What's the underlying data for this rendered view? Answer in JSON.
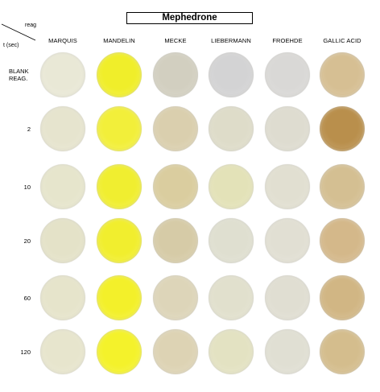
{
  "title": "Mephedrone",
  "corner": {
    "reagent_label": "reag",
    "time_label": "t (sec)"
  },
  "reagents": [
    "MARQUIS",
    "MANDELIN",
    "MECKE",
    "LIEBERMANN",
    "FROEHDE",
    "GALLIC ACID"
  ],
  "rows": [
    {
      "label_line1": "BLANK",
      "label_line2": "REAG."
    },
    {
      "label_line1": "2",
      "label_line2": ""
    },
    {
      "label_line1": "10",
      "label_line2": ""
    },
    {
      "label_line1": "20",
      "label_line2": ""
    },
    {
      "label_line1": "60",
      "label_line2": ""
    },
    {
      "label_line1": "120",
      "label_line2": ""
    }
  ],
  "well_colors": [
    [
      "#e9e8d6",
      "#f0ee2a",
      "#d2cfc0",
      "#d3d3d4",
      "#d9d8d6",
      "#d6bf93"
    ],
    [
      "#e6e4ce",
      "#f2ef3a",
      "#dacfae",
      "#dedcc9",
      "#dedcd0",
      "#b98f4c"
    ],
    [
      "#e6e5cc",
      "#f0ee30",
      "#dacd9f",
      "#e3e2b8",
      "#e1dfd1",
      "#d4bf92"
    ],
    [
      "#e4e2c8",
      "#f1ee2e",
      "#d6cba7",
      "#dfdfd0",
      "#e1dfd3",
      "#d4b88a"
    ],
    [
      "#e6e4cb",
      "#f3f02a",
      "#ddd5b9",
      "#e1e0cd",
      "#e0ded2",
      "#d1b684"
    ],
    [
      "#e7e5cd",
      "#f4f22b",
      "#ddd3b4",
      "#e3e2c2",
      "#e0dfd3",
      "#d4bd8d"
    ]
  ]
}
